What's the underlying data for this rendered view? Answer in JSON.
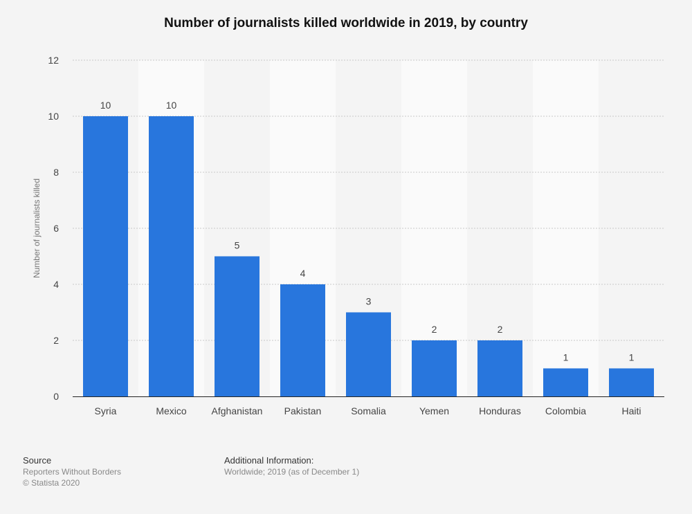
{
  "chart_data": {
    "type": "bar",
    "title": "Number of journalists killed worldwide in 2019, by country",
    "ylabel": "Number of journalists killed",
    "xlabel": "",
    "ylim": [
      0,
      12
    ],
    "yticks": [
      0,
      2,
      4,
      6,
      8,
      10,
      12
    ],
    "grid": true,
    "categories": [
      "Syria",
      "Mexico",
      "Afghanistan",
      "Pakistan",
      "Somalia",
      "Yemen",
      "Honduras",
      "Colombia",
      "Haiti"
    ],
    "values": [
      10,
      10,
      5,
      4,
      3,
      2,
      2,
      1,
      1
    ],
    "data_labels": [
      "10",
      "10",
      "5",
      "4",
      "3",
      "2",
      "2",
      "1",
      "1"
    ],
    "bar_color": "#2876dd"
  },
  "footer": {
    "source_heading": "Source",
    "source_lines": [
      "Reporters Without Borders",
      "© Statista 2020"
    ],
    "info_heading": "Additional Information:",
    "info_text": "Worldwide; 2019 (as of December 1)"
  }
}
